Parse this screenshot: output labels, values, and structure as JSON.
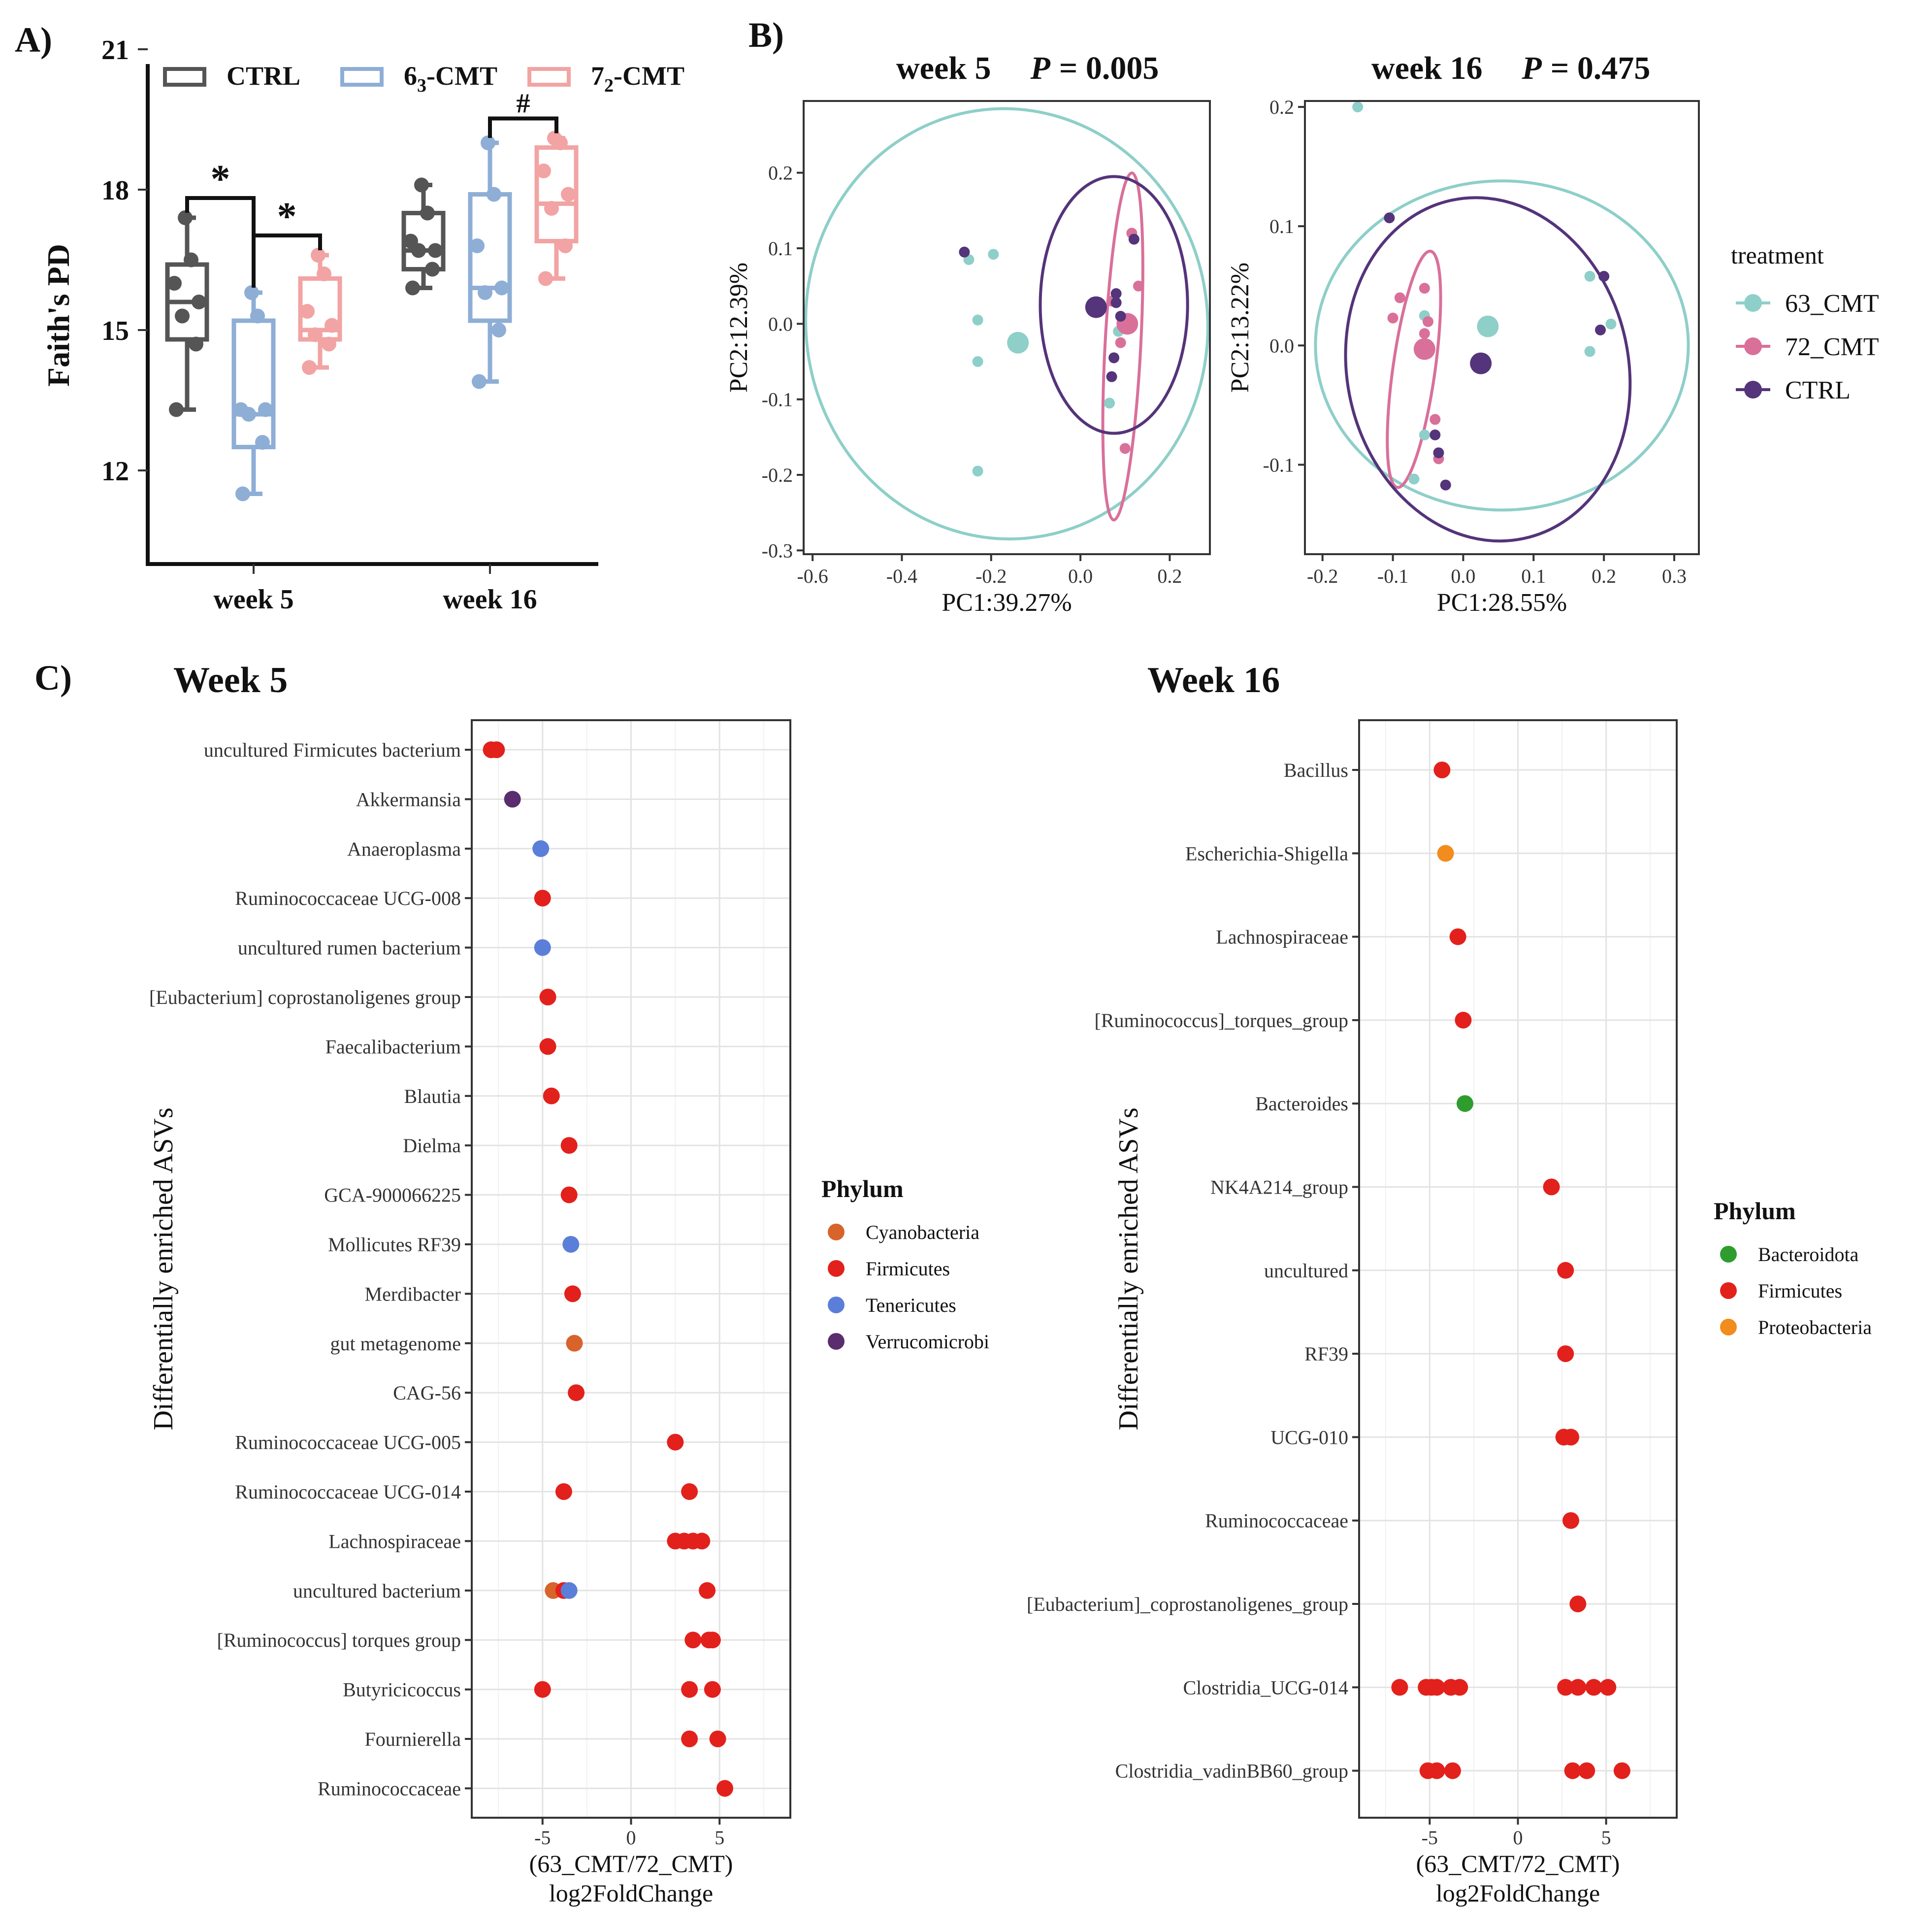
{
  "panels": {
    "A": "A)",
    "B": "B)",
    "C": "C)"
  },
  "colors": {
    "ctrl_box": "#555555",
    "cmt63_box": "#8eaed6",
    "cmt72_box": "#f2a3a3",
    "pcoa_63": "#8ecfc9",
    "pcoa_72": "#d9709a",
    "pcoa_ctrl": "#54347a",
    "cyanobacteria": "#d8632b",
    "firmicutes": "#e2211c",
    "tenericutes": "#5b7fd8",
    "verrucomicrobi": "#5a2d6e",
    "bacteroidota": "#2e9d2e",
    "proteobacteria": "#f28c1d"
  },
  "chart_data": [
    {
      "id": "A",
      "type": "box",
      "ylabel": "Faith's PD",
      "ylim": [
        10,
        21
      ],
      "yticks": [
        "12",
        "15",
        "18",
        "21"
      ],
      "categories": [
        "week 5",
        "week 16"
      ],
      "legend": [
        {
          "key": "ctrl",
          "label_main": "CTRL",
          "label_sub": "",
          "label_end": ""
        },
        {
          "key": "cmt63",
          "label_main": "6",
          "label_sub": "3",
          "label_end": "-CMT"
        },
        {
          "key": "cmt72",
          "label_main": "7",
          "label_sub": "2",
          "label_end": "-CMT"
        }
      ],
      "boxes": [
        {
          "group": "week 5",
          "series": "ctrl",
          "min": 13.3,
          "q1": 14.8,
          "median": 15.6,
          "q3": 16.4,
          "max": 17.4,
          "points": [
            13.3,
            14.7,
            15.3,
            15.6,
            16.0,
            16.5,
            17.4
          ]
        },
        {
          "group": "week 5",
          "series": "cmt63",
          "min": 11.5,
          "q1": 12.5,
          "median": 13.2,
          "q3": 15.2,
          "max": 15.8,
          "points": [
            11.5,
            12.6,
            13.2,
            13.3,
            13.3,
            15.3,
            15.8
          ]
        },
        {
          "group": "week 5",
          "series": "cmt72",
          "min": 14.2,
          "q1": 14.8,
          "median": 15.0,
          "q3": 16.1,
          "max": 16.6,
          "points": [
            14.2,
            14.7,
            14.9,
            15.1,
            15.4,
            16.2,
            16.6
          ]
        },
        {
          "group": "week 16",
          "series": "ctrl",
          "min": 15.9,
          "q1": 16.3,
          "median": 16.7,
          "q3": 17.5,
          "max": 18.1,
          "points": [
            15.9,
            16.3,
            16.7,
            16.7,
            16.9,
            17.5,
            18.1
          ]
        },
        {
          "group": "week 16",
          "series": "cmt63",
          "min": 13.9,
          "q1": 15.2,
          "median": 15.9,
          "q3": 17.9,
          "max": 19.0,
          "points": [
            13.9,
            15.0,
            15.8,
            15.9,
            16.8,
            17.9,
            19.0
          ]
        },
        {
          "group": "week 16",
          "series": "cmt72",
          "min": 16.1,
          "q1": 16.9,
          "median": 17.7,
          "q3": 18.9,
          "max": 19.1,
          "points": [
            16.1,
            16.8,
            17.6,
            17.9,
            18.4,
            19.0,
            19.1
          ]
        }
      ],
      "annotations": [
        {
          "text": "*",
          "between": [
            "ctrl",
            "cmt63"
          ],
          "group": "week 5"
        },
        {
          "text": "*",
          "between": [
            "cmt63",
            "cmt72"
          ],
          "group": "week 5"
        },
        {
          "text": "#",
          "between": [
            "cmt63",
            "cmt72"
          ],
          "group": "week 16"
        }
      ]
    },
    {
      "id": "B1",
      "type": "scatter",
      "title": "week 5",
      "p_label": "P",
      "p_value": "= 0.005",
      "xlabel": "PC1:39.27%",
      "ylabel": "PC2:12.39%",
      "xlim": [
        -0.62,
        0.29
      ],
      "ylim": [
        -0.305,
        0.295
      ],
      "xticks": [
        "-0.6",
        "-0.4",
        "-0.2",
        "0.0",
        "0.2"
      ],
      "yticks": [
        "-0.3",
        "-0.2",
        "-0.1",
        "0.0",
        "0.1",
        "0.2"
      ],
      "series": [
        {
          "name": "63_CMT",
          "points": [
            [
              -0.25,
              0.085
            ],
            [
              -0.195,
              0.092
            ],
            [
              -0.23,
              0.005
            ],
            [
              -0.23,
              -0.05
            ],
            [
              -0.23,
              -0.195
            ],
            [
              0.065,
              -0.105
            ],
            [
              0.085,
              -0.01
            ]
          ],
          "centroid": [
            -0.14,
            -0.025
          ],
          "ellipse": {
            "cx": -0.165,
            "cy": 0.0,
            "rx": 0.45,
            "ry": 0.285,
            "rotate": -6
          }
        },
        {
          "name": "72_CMT",
          "points": [
            [
              0.115,
              0.12
            ],
            [
              0.13,
              0.05
            ],
            [
              0.1,
              0.0
            ],
            [
              0.09,
              -0.025
            ],
            [
              0.1,
              -0.165
            ],
            [
              0.07,
              0.03
            ]
          ],
          "centroid": [
            0.105,
            0.0
          ],
          "ellipse": {
            "cx": 0.095,
            "cy": -0.03,
            "rx": 0.04,
            "ry": 0.23,
            "rotate": 3
          }
        },
        {
          "name": "CTRL",
          "points": [
            [
              -0.26,
              0.095
            ],
            [
              0.12,
              0.112
            ],
            [
              0.08,
              0.04
            ],
            [
              0.09,
              0.01
            ],
            [
              0.075,
              -0.045
            ],
            [
              0.07,
              -0.07
            ],
            [
              0.08,
              0.028
            ]
          ],
          "centroid": [
            0.035,
            0.022
          ],
          "ellipse": {
            "cx": 0.075,
            "cy": 0.025,
            "rx": 0.165,
            "ry": 0.17,
            "rotate": 0
          }
        }
      ]
    },
    {
      "id": "B2",
      "type": "scatter",
      "title": "week 16",
      "p_label": "P",
      "p_value": "= 0.475",
      "xlabel": "PC1:28.55%",
      "ylabel": "PC2:13.22%",
      "xlim": [
        -0.225,
        0.335
      ],
      "ylim": [
        -0.175,
        0.205
      ],
      "xticks": [
        "-0.2",
        "-0.1",
        "0.0",
        "0.1",
        "0.2",
        "0.3"
      ],
      "yticks": [
        "-0.1",
        "0.0",
        "0.1",
        "0.2"
      ],
      "series": [
        {
          "name": "63_CMT",
          "points": [
            [
              -0.15,
              0.2
            ],
            [
              -0.055,
              0.025
            ],
            [
              0.18,
              0.058
            ],
            [
              0.21,
              0.018
            ],
            [
              0.18,
              -0.005
            ],
            [
              -0.055,
              -0.075
            ],
            [
              -0.07,
              -0.112
            ]
          ],
          "centroid": [
            0.035,
            0.016
          ],
          "ellipse": {
            "cx": 0.055,
            "cy": 0.0,
            "rx": 0.265,
            "ry": 0.138,
            "rotate": 0
          }
        },
        {
          "name": "72_CMT",
          "points": [
            [
              -0.09,
              0.04
            ],
            [
              -0.055,
              0.048
            ],
            [
              -0.05,
              0.02
            ],
            [
              -0.055,
              0.01
            ],
            [
              -0.1,
              0.023
            ],
            [
              -0.04,
              -0.062
            ],
            [
              -0.035,
              -0.095
            ]
          ],
          "centroid": [
            -0.055,
            -0.003
          ],
          "ellipse": {
            "cx": -0.07,
            "cy": -0.02,
            "rx": 0.03,
            "ry": 0.1,
            "rotate": 8
          }
        },
        {
          "name": "CTRL",
          "points": [
            [
              -0.105,
              0.107
            ],
            [
              0.2,
              0.058
            ],
            [
              0.195,
              0.013
            ],
            [
              -0.04,
              -0.075
            ],
            [
              -0.035,
              -0.09
            ],
            [
              -0.025,
              -0.117
            ]
          ],
          "centroid": [
            0.025,
            -0.015
          ],
          "ellipse": {
            "cx": 0.035,
            "cy": -0.02,
            "rx": 0.2,
            "ry": 0.145,
            "rotate": -12
          }
        }
      ],
      "legend_title": "treatment",
      "legend": [
        "63_CMT",
        "72_CMT",
        "CTRL"
      ]
    },
    {
      "id": "C1",
      "type": "scatter",
      "title": "Week 5",
      "xlabel_line1": "(63_CMT/72_CMT)",
      "xlabel_line2": "log2FoldChange",
      "ylabel": "Differentially enriched ASVs",
      "xlim": [
        -9,
        9
      ],
      "xticks": [
        "-5",
        "0",
        "5"
      ],
      "legend_title": "Phylum",
      "legend": [
        "Cyanobacteria",
        "Firmicutes",
        "Tenericutes",
        "Verrucomicrobi"
      ],
      "rows": [
        {
          "label": "uncultured Firmicutes bacterium",
          "points": [
            [
              -7.9,
              "Firmicutes"
            ],
            [
              -7.6,
              "Firmicutes"
            ]
          ]
        },
        {
          "label": "Akkermansia",
          "points": [
            [
              -6.7,
              "Verrucomicrobi"
            ]
          ]
        },
        {
          "label": "Anaeroplasma",
          "points": [
            [
              -5.1,
              "Tenericutes"
            ]
          ]
        },
        {
          "label": "Ruminococcaceae UCG-008",
          "points": [
            [
              -5.0,
              "Firmicutes"
            ]
          ]
        },
        {
          "label": "uncultured rumen bacterium",
          "points": [
            [
              -5.0,
              "Tenericutes"
            ]
          ]
        },
        {
          "label": "[Eubacterium] coprostanoligenes group",
          "points": [
            [
              -4.7,
              "Firmicutes"
            ]
          ]
        },
        {
          "label": "Faecalibacterium",
          "points": [
            [
              -4.7,
              "Firmicutes"
            ]
          ]
        },
        {
          "label": "Blautia",
          "points": [
            [
              -4.5,
              "Firmicutes"
            ]
          ]
        },
        {
          "label": "Dielma",
          "points": [
            [
              -3.5,
              "Firmicutes"
            ]
          ]
        },
        {
          "label": "GCA-900066225",
          "points": [
            [
              -3.5,
              "Firmicutes"
            ]
          ]
        },
        {
          "label": "Mollicutes RF39",
          "points": [
            [
              -3.4,
              "Tenericutes"
            ]
          ]
        },
        {
          "label": "Merdibacter",
          "points": [
            [
              -3.3,
              "Firmicutes"
            ]
          ]
        },
        {
          "label": "gut metagenome",
          "points": [
            [
              -3.2,
              "Cyanobacteria"
            ]
          ]
        },
        {
          "label": "CAG-56",
          "points": [
            [
              -3.1,
              "Firmicutes"
            ]
          ]
        },
        {
          "label": "Ruminococcaceae UCG-005",
          "points": [
            [
              2.5,
              "Firmicutes"
            ]
          ]
        },
        {
          "label": "Ruminococcaceae UCG-014",
          "points": [
            [
              -3.8,
              "Firmicutes"
            ],
            [
              3.3,
              "Firmicutes"
            ]
          ]
        },
        {
          "label": "Lachnospiraceae",
          "points": [
            [
              2.5,
              "Firmicutes"
            ],
            [
              3.0,
              "Firmicutes"
            ],
            [
              3.5,
              "Firmicutes"
            ],
            [
              4.0,
              "Firmicutes"
            ]
          ]
        },
        {
          "label": "uncultured bacterium",
          "points": [
            [
              -4.4,
              "Cyanobacteria"
            ],
            [
              -3.8,
              "Firmicutes"
            ],
            [
              -3.5,
              "Tenericutes"
            ],
            [
              4.3,
              "Firmicutes"
            ]
          ]
        },
        {
          "label": "[Ruminococcus] torques group",
          "points": [
            [
              3.5,
              "Firmicutes"
            ],
            [
              4.4,
              "Firmicutes"
            ],
            [
              4.6,
              "Firmicutes"
            ]
          ]
        },
        {
          "label": "Butyricicoccus",
          "points": [
            [
              -5.0,
              "Firmicutes"
            ],
            [
              3.3,
              "Firmicutes"
            ],
            [
              4.6,
              "Firmicutes"
            ]
          ]
        },
        {
          "label": "Fournierella",
          "points": [
            [
              3.3,
              "Firmicutes"
            ],
            [
              4.9,
              "Firmicutes"
            ]
          ]
        },
        {
          "label": "Ruminococcaceae",
          "points": [
            [
              5.3,
              "Firmicutes"
            ]
          ]
        }
      ]
    },
    {
      "id": "C2",
      "type": "scatter",
      "title": "Week 16",
      "xlabel_line1": "(63_CMT/72_CMT)",
      "xlabel_line2": "log2FoldChange",
      "ylabel": "Differentially enriched ASVs",
      "xlim": [
        -9,
        9
      ],
      "xticks": [
        "-5",
        "0",
        "5"
      ],
      "legend_title": "Phylum",
      "legend": [
        "Bacteroidota",
        "Firmicutes",
        "Proteobacteria"
      ],
      "rows": [
        {
          "label": "Bacillus",
          "points": [
            [
              -4.3,
              "Firmicutes"
            ]
          ]
        },
        {
          "label": "Escherichia-Shigella",
          "points": [
            [
              -4.1,
              "Proteobacteria"
            ]
          ]
        },
        {
          "label": "Lachnospiraceae",
          "points": [
            [
              -3.4,
              "Firmicutes"
            ]
          ]
        },
        {
          "label": "[Ruminococcus]_torques_group",
          "points": [
            [
              -3.1,
              "Firmicutes"
            ]
          ]
        },
        {
          "label": "Bacteroides",
          "points": [
            [
              -3.0,
              "Bacteroidota"
            ]
          ]
        },
        {
          "label": "NK4A214_group",
          "points": [
            [
              1.9,
              "Firmicutes"
            ]
          ]
        },
        {
          "label": "uncultured",
          "points": [
            [
              2.7,
              "Firmicutes"
            ]
          ]
        },
        {
          "label": "RF39",
          "points": [
            [
              2.7,
              "Firmicutes"
            ]
          ]
        },
        {
          "label": "UCG-010",
          "points": [
            [
              2.6,
              "Firmicutes"
            ],
            [
              3.0,
              "Firmicutes"
            ]
          ]
        },
        {
          "label": "Ruminococcaceae",
          "points": [
            [
              3.0,
              "Firmicutes"
            ]
          ]
        },
        {
          "label": "[Eubacterium]_coprostanoligenes_group",
          "points": [
            [
              3.4,
              "Firmicutes"
            ]
          ]
        },
        {
          "label": "Clostridia_UCG-014",
          "points": [
            [
              -6.7,
              "Firmicutes"
            ],
            [
              -5.2,
              "Firmicutes"
            ],
            [
              -4.9,
              "Firmicutes"
            ],
            [
              -4.6,
              "Firmicutes"
            ],
            [
              -3.8,
              "Firmicutes"
            ],
            [
              -3.3,
              "Firmicutes"
            ],
            [
              2.7,
              "Firmicutes"
            ],
            [
              3.4,
              "Firmicutes"
            ],
            [
              4.3,
              "Firmicutes"
            ],
            [
              5.1,
              "Firmicutes"
            ]
          ]
        },
        {
          "label": "Clostridia_vadinBB60_group",
          "points": [
            [
              -5.1,
              "Firmicutes"
            ],
            [
              -4.6,
              "Firmicutes"
            ],
            [
              -3.7,
              "Firmicutes"
            ],
            [
              3.1,
              "Firmicutes"
            ],
            [
              3.9,
              "Firmicutes"
            ],
            [
              5.9,
              "Firmicutes"
            ]
          ]
        }
      ]
    }
  ]
}
